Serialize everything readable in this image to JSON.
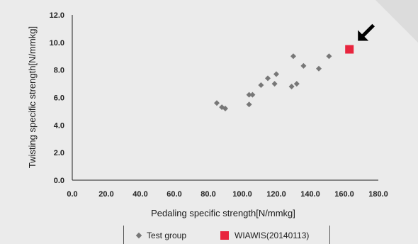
{
  "chart_data": {
    "type": "scatter",
    "xlabel": "Pedaling specific strength[N/mmkg]",
    "ylabel": "Twisting specific strength[N/mmkg]",
    "xlim": [
      0,
      180
    ],
    "ylim": [
      0,
      12
    ],
    "xticks": [
      "0.0",
      "20.0",
      "40.0",
      "60.0",
      "80.0",
      "100.0",
      "120.0",
      "140.0",
      "160.0",
      "180.0"
    ],
    "yticks": [
      "0.0",
      "2.0",
      "4.0",
      "6.0",
      "8.0",
      "10.0",
      "12.0"
    ],
    "grid": false,
    "legend_position": "bottom",
    "series": [
      {
        "name": "Test group",
        "marker": "diamond",
        "color": "#777777",
        "points": [
          [
            85,
            5.6
          ],
          [
            88,
            5.3
          ],
          [
            90,
            5.2
          ],
          [
            104,
            6.2
          ],
          [
            104,
            5.5
          ],
          [
            106,
            6.2
          ],
          [
            111,
            6.9
          ],
          [
            115,
            7.4
          ],
          [
            119,
            7.0
          ],
          [
            120,
            7.7
          ],
          [
            129,
            6.8
          ],
          [
            130,
            9.0
          ],
          [
            132,
            7.0
          ],
          [
            136,
            8.3
          ],
          [
            145,
            8.1
          ],
          [
            151,
            9.0
          ]
        ]
      },
      {
        "name": "WIAWIS(20140113)",
        "marker": "square",
        "color": "#e8253e",
        "points": [
          [
            163,
            9.5
          ]
        ]
      }
    ],
    "annotation": {
      "type": "arrow",
      "target_series": "WIAWIS(20140113)",
      "color": "#000000"
    }
  }
}
